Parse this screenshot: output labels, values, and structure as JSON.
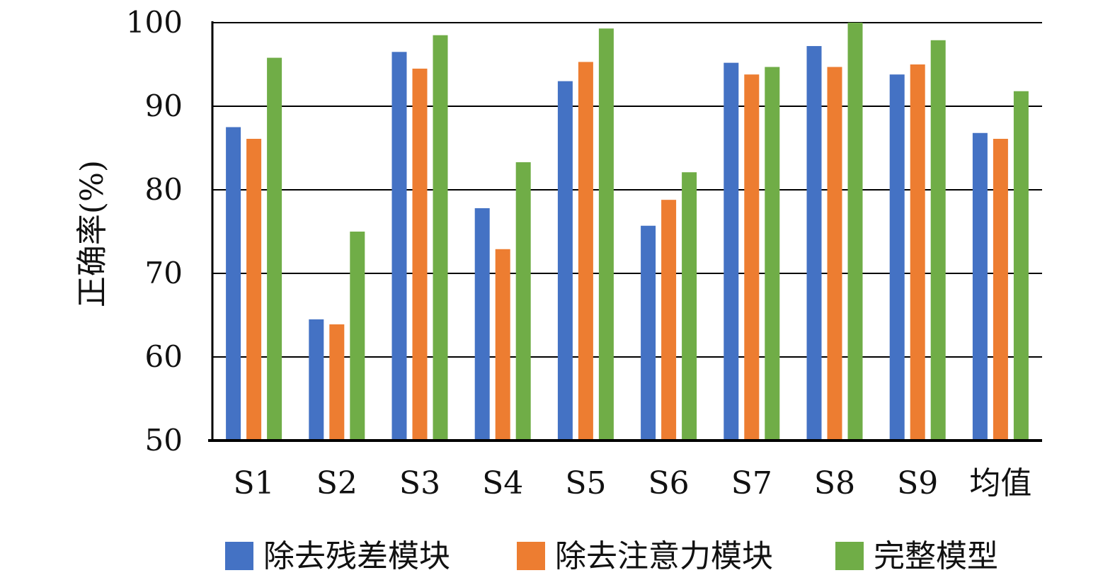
{
  "chart_data": {
    "type": "bar",
    "ylabel": "正确率(%)",
    "ylim": [
      50,
      100
    ],
    "yticks": [
      50,
      60,
      70,
      80,
      90,
      100
    ],
    "grid": true,
    "legend_position": "bottom",
    "categories": [
      "S1",
      "S2",
      "S3",
      "S4",
      "S5",
      "S6",
      "S7",
      "S8",
      "S9",
      "均值"
    ],
    "series": [
      {
        "name": "除去残差模块",
        "color": "#4472C4",
        "values": [
          87.5,
          64.5,
          96.5,
          77.8,
          93.0,
          75.7,
          95.2,
          97.2,
          93.8,
          86.8
        ]
      },
      {
        "name": "除去注意力模块",
        "color": "#ED7D31",
        "values": [
          86.1,
          63.9,
          94.5,
          72.9,
          95.3,
          78.8,
          93.8,
          94.7,
          95.0,
          86.1
        ]
      },
      {
        "name": "完整模型",
        "color": "#70AD47",
        "values": [
          95.8,
          75.0,
          98.5,
          83.3,
          99.3,
          82.1,
          94.7,
          100.0,
          97.9,
          91.8
        ]
      }
    ]
  }
}
